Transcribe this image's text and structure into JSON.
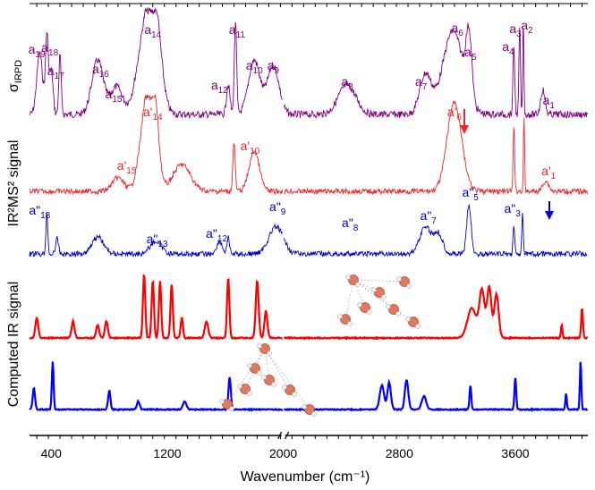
{
  "chart_data": {
    "type": "line",
    "xlabel": "Wavenumber (cm⁻¹)",
    "xlim": [
      250,
      4100
    ],
    "x_ticks": [
      400,
      1200,
      2000,
      2800,
      3600
    ],
    "x_tick_labels": [
      "400",
      "1200",
      "2000",
      "2800",
      "3600"
    ],
    "axis_break_at": 2000,
    "ylabels": {
      "irpd": "σ",
      "irpd_sub": "IRPD",
      "ir2ms2": "IR²MS² signal",
      "computed": "Computed IR signal"
    },
    "series": [
      {
        "name": "sigma_IRPD",
        "color": "#800080",
        "peaks": [
          [
            320,
            0.62,
            20
          ],
          [
            370,
            0.8,
            10
          ],
          [
            400,
            0.45,
            12
          ],
          [
            460,
            0.6,
            8
          ],
          [
            720,
            0.55,
            40
          ],
          [
            850,
            0.28,
            40
          ],
          [
            1060,
            0.95,
            60
          ],
          [
            1120,
            0.6,
            40
          ],
          [
            1620,
            0.3,
            12
          ],
          [
            1670,
            0.95,
            8
          ],
          [
            1800,
            0.55,
            40
          ],
          [
            1930,
            0.5,
            40
          ],
          [
            2440,
            0.3,
            60
          ],
          [
            2980,
            0.4,
            40
          ],
          [
            3170,
            0.85,
            70
          ],
          [
            3280,
            0.65,
            20
          ],
          [
            3590,
            0.7,
            6
          ],
          [
            3630,
            0.9,
            5
          ],
          [
            3655,
            0.96,
            4
          ],
          [
            3790,
            0.25,
            15
          ]
        ],
        "labels": [
          {
            "x": 300,
            "text": "a",
            "sub": "19"
          },
          {
            "x": 390,
            "text": "a",
            "sub": "18"
          },
          {
            "x": 430,
            "text": "a",
            "sub": "17"
          },
          {
            "x": 740,
            "text": "a",
            "sub": "16"
          },
          {
            "x": 830,
            "text": "a",
            "sub": "15"
          },
          {
            "x": 1100,
            "text": "a",
            "sub": "14"
          },
          {
            "x": 1560,
            "text": "a",
            "sub": "12"
          },
          {
            "x": 1680,
            "text": "a",
            "sub": "11"
          },
          {
            "x": 1800,
            "text": "a",
            "sub": "10"
          },
          {
            "x": 1930,
            "text": "a",
            "sub": "9"
          },
          {
            "x": 2440,
            "text": "a",
            "sub": "8"
          },
          {
            "x": 2950,
            "text": "a",
            "sub": "7"
          },
          {
            "x": 3200,
            "text": "a",
            "sub": "6"
          },
          {
            "x": 3290,
            "text": "a",
            "sub": "5"
          },
          {
            "x": 3550,
            "text": "a",
            "sub": "4"
          },
          {
            "x": 3600,
            "text": "a",
            "sub": "3"
          },
          {
            "x": 3680,
            "text": "a",
            "sub": "2"
          },
          {
            "x": 3830,
            "text": "a",
            "sub": "1"
          }
        ]
      },
      {
        "name": "IR2MS2_red",
        "color": "#e8262b",
        "peaks": [
          [
            860,
            0.15,
            40
          ],
          [
            1060,
            1.0,
            45
          ],
          [
            1110,
            0.7,
            30
          ],
          [
            1300,
            0.3,
            60
          ],
          [
            1660,
            0.55,
            8
          ],
          [
            1800,
            0.45,
            35
          ],
          [
            3180,
            1.0,
            50
          ],
          [
            3590,
            0.75,
            5
          ],
          [
            3660,
            0.85,
            4
          ],
          [
            3810,
            0.12,
            20
          ]
        ],
        "labels": [
          {
            "x": 920,
            "text": "a'",
            "sub": "15"
          },
          {
            "x": 1100,
            "text": "a'",
            "sub": "14"
          },
          {
            "x": 1770,
            "text": "a'",
            "sub": "10"
          },
          {
            "x": 3180,
            "text": "a'",
            "sub": "6"
          },
          {
            "x": 3830,
            "text": "a'",
            "sub": "1"
          }
        ]
      },
      {
        "name": "IR2MS2_blue",
        "color": "#0000cd",
        "peaks": [
          [
            370,
            0.85,
            6
          ],
          [
            440,
            0.3,
            10
          ],
          [
            720,
            0.35,
            40
          ],
          [
            1120,
            0.25,
            40
          ],
          [
            1560,
            0.25,
            20
          ],
          [
            1620,
            0.35,
            8
          ],
          [
            1950,
            0.55,
            50
          ],
          [
            2980,
            0.55,
            40
          ],
          [
            3070,
            0.4,
            30
          ],
          [
            3280,
            1.0,
            15
          ],
          [
            3590,
            0.55,
            6
          ],
          [
            3650,
            0.8,
            5
          ]
        ],
        "labels": [
          {
            "x": 320,
            "text": "a\"",
            "sub": "18"
          },
          {
            "x": 1130,
            "text": "a\"",
            "sub": "13"
          },
          {
            "x": 1540,
            "text": "a\"",
            "sub": "12"
          },
          {
            "x": 1960,
            "text": "a\"",
            "sub": "9"
          },
          {
            "x": 2460,
            "text": "a\"",
            "sub": "8"
          },
          {
            "x": 3000,
            "text": "a\"",
            "sub": "7"
          },
          {
            "x": 3290,
            "text": "a\"",
            "sub": "5"
          },
          {
            "x": 3580,
            "text": "a\"",
            "sub": "3"
          }
        ]
      },
      {
        "name": "computed_red",
        "color": "#ff0000",
        "peaks": [
          [
            300,
            0.3,
            10
          ],
          [
            550,
            0.25,
            10
          ],
          [
            720,
            0.2,
            10
          ],
          [
            780,
            0.25,
            10
          ],
          [
            1040,
            0.95,
            8
          ],
          [
            1100,
            0.85,
            8
          ],
          [
            1150,
            0.85,
            8
          ],
          [
            1230,
            0.8,
            8
          ],
          [
            1300,
            0.3,
            8
          ],
          [
            1470,
            0.25,
            12
          ],
          [
            1620,
            0.9,
            8
          ],
          [
            1820,
            0.85,
            10
          ],
          [
            1880,
            0.4,
            10
          ],
          [
            3370,
            0.7,
            18
          ],
          [
            3420,
            0.75,
            15
          ],
          [
            3470,
            0.65,
            15
          ],
          [
            3300,
            0.45,
            30
          ],
          [
            3920,
            0.2,
            5
          ],
          [
            4060,
            0.45,
            6
          ]
        ]
      },
      {
        "name": "computed_blue",
        "color": "#0000ff",
        "peaks": [
          [
            280,
            0.4,
            8
          ],
          [
            410,
            0.9,
            6
          ],
          [
            800,
            0.35,
            8
          ],
          [
            1000,
            0.15,
            10
          ],
          [
            1320,
            0.15,
            12
          ],
          [
            1630,
            0.6,
            8
          ],
          [
            2680,
            0.45,
            15
          ],
          [
            2730,
            0.5,
            12
          ],
          [
            2850,
            0.55,
            12
          ],
          [
            2970,
            0.25,
            15
          ],
          [
            3290,
            0.45,
            6
          ],
          [
            3600,
            0.6,
            6
          ],
          [
            3950,
            0.3,
            5
          ],
          [
            4050,
            0.9,
            5
          ]
        ]
      }
    ]
  }
}
